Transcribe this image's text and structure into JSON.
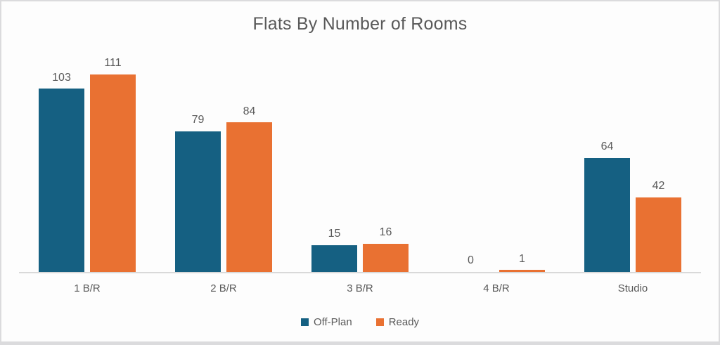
{
  "chart": {
    "background_color": "#FDFDFD",
    "frame_border_color": "#DBDBDD",
    "axis_line_color": "#D9D9D9",
    "text_color": "#595959"
  },
  "chart_data": {
    "type": "bar",
    "title": "Flats By Number of Rooms",
    "categories": [
      "1 B/R",
      "2 B/R",
      "3 B/R",
      "4 B/R",
      "Studio"
    ],
    "series": [
      {
        "name": "Off-Plan",
        "color": "#156082",
        "values": [
          103,
          79,
          15,
          0,
          64
        ]
      },
      {
        "name": "Ready",
        "color": "#E97132",
        "values": [
          111,
          84,
          16,
          1,
          42
        ]
      }
    ],
    "xlabel": "",
    "ylabel": "",
    "ylim": [
      0,
      126
    ],
    "grid": false,
    "legend_position": "bottom",
    "data_labels": true
  }
}
